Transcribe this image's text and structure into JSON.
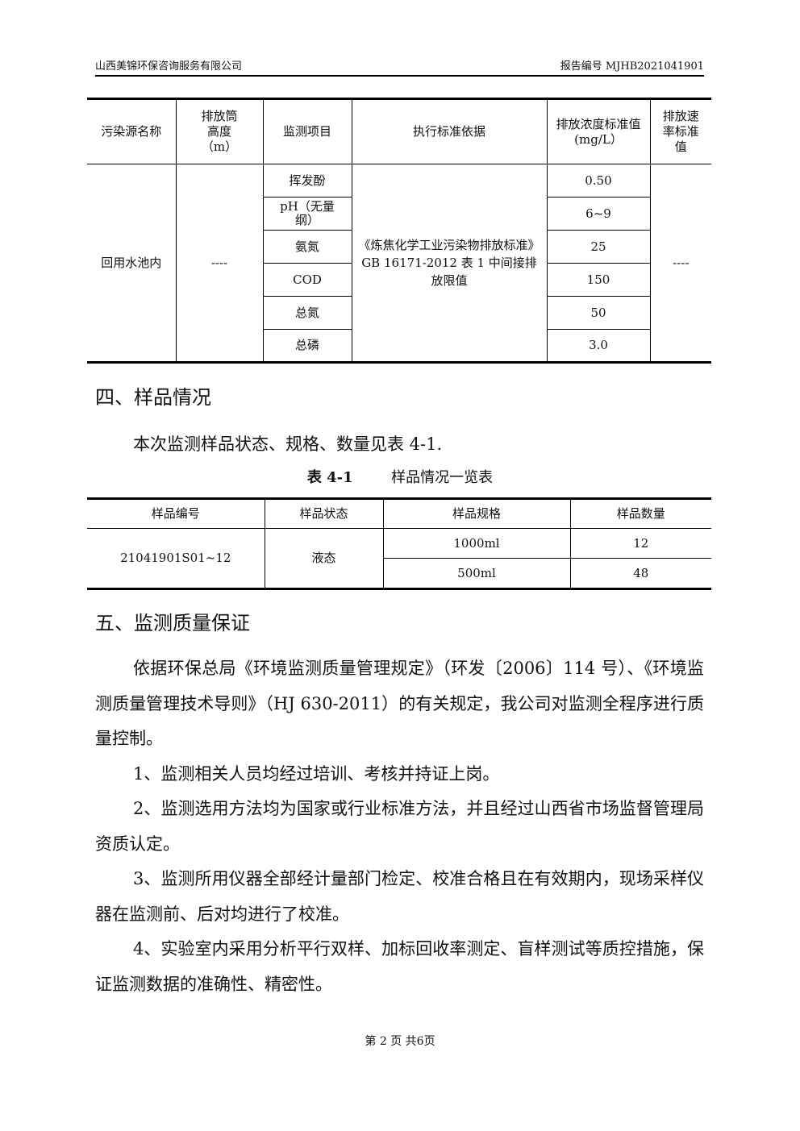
{
  "header": {
    "company": "山西美锦环保咨询服务有限公司",
    "report_no": "报告编号 MJHB2021041901"
  },
  "table1": {
    "headers": [
      "污染源名称",
      "排放筒高度（m）",
      "监测项目",
      "执行标准依据",
      "排放浓度标准值(mg/L）",
      "排放速率标准值"
    ],
    "source": "回用水池内",
    "height": "----",
    "items": [
      {
        "item": "挥发酚",
        "value": "0.50"
      },
      {
        "item": "pH（无量纲）",
        "value": "6~9"
      },
      {
        "item": "氨氮",
        "value": "25"
      },
      {
        "item": "COD",
        "value": "150"
      },
      {
        "item": "总氮",
        "value": "50"
      },
      {
        "item": "总磷",
        "value": "3.0"
      }
    ],
    "standard": "《炼焦化学工业污染物排放标准》GB 16171-2012 表 1 中间接排放限值",
    "rate": "----"
  },
  "section4": {
    "title": "四、样品情况",
    "intro": "本次监测样品状态、规格、数量见表 4-1.",
    "caption_no": "表 4-1",
    "caption_title": "样品情况一览表"
  },
  "table2": {
    "headers": [
      "样品编号",
      "样品状态",
      "样品规格",
      "样品数量"
    ],
    "sample_id": "21041901S01~12",
    "state": "液态",
    "rows": [
      {
        "spec": "1000ml",
        "qty": "12"
      },
      {
        "spec": "500ml",
        "qty": "48"
      }
    ]
  },
  "section5": {
    "title": "五、监测质量保证",
    "paragraphs": [
      "依据环保总局《环境监测质量管理规定》（环发〔2006〕114 号）、《环境监测质量管理技术导则》（HJ 630-2011）的有关规定，我公司对监测全程序进行质量控制。",
      "1、监测相关人员均经过培训、考核并持证上岗。",
      "2、监测选用方法均为国家或行业标准方法，并且经过山西省市场监督管理局资质认定。",
      "3、监测所用仪器全部经计量部门检定、校准合格且在有效期内，现场采样仪器在监测前、后对均进行了校准。",
      "4、实验室内采用分析平行双样、加标回收率测定、盲样测试等质控措施，保证监测数据的准确性、精密性。"
    ]
  },
  "footer": {
    "page": "第 2 页 共6页"
  }
}
